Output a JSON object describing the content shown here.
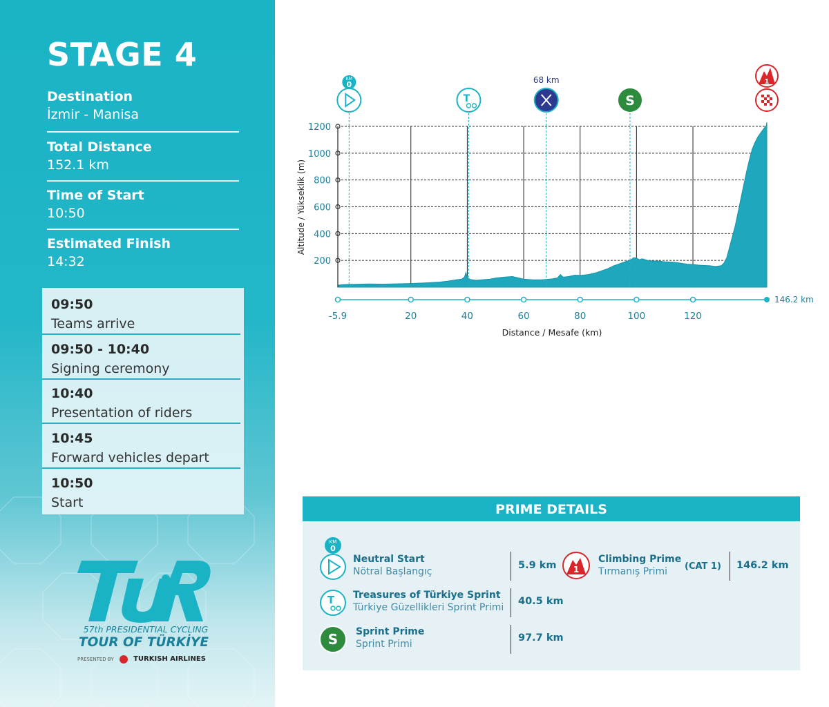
{
  "stage": {
    "title": "STAGE 4"
  },
  "info": [
    {
      "label": "Destination",
      "value": "İzmir - Manisa"
    },
    {
      "label": "Total Distance",
      "value": "152.1 km"
    },
    {
      "label": "Time of Start",
      "value": "10:50"
    },
    {
      "label": "Estimated Finish",
      "value": "14:32"
    }
  ],
  "schedule": [
    {
      "time": "09:50",
      "desc": "Teams arrive"
    },
    {
      "time": "09:50 - 10:40",
      "desc": "Signing ceremony"
    },
    {
      "time": "10:40",
      "desc": "Presentation of riders"
    },
    {
      "time": "10:45",
      "desc": "Forward vehicles depart"
    },
    {
      "time": "10:50",
      "desc": "Start"
    }
  ],
  "logo": {
    "wordmark": "TUR",
    "line1": "57th PRESIDENTIAL CYCLING",
    "line2": "TOUR OF TÜRKİYE",
    "presented": "PRESENTED BY",
    "sponsor": "TURKISH AIRLINES"
  },
  "colors": {
    "teal": "#1ab3c6",
    "dark_teal": "#1a7f9a",
    "profile": "#1fa8bd",
    "navy": "#2b3990",
    "green": "#2e8b3e",
    "red": "#d9262b"
  },
  "chart_data": {
    "type": "area",
    "ylabel": "Altitude / Yükseklik (m)",
    "xlabel": "Distance / Mesafe  (km)",
    "xlim": [
      -5.9,
      146.2
    ],
    "ylim": [
      0,
      1200
    ],
    "x_ticks": [
      "-5.9",
      "20",
      "40",
      "60",
      "80",
      "100",
      "120"
    ],
    "x_tick_values": [
      -5.9,
      20,
      40,
      60,
      80,
      100,
      120
    ],
    "y_ticks": [
      1200,
      1000,
      800,
      600,
      400,
      200
    ],
    "end_label": "146.2 km",
    "grid": true,
    "series": [
      {
        "x": [
          -5.9,
          -4,
          0,
          5,
          10,
          15,
          20,
          25,
          30,
          33,
          36,
          38,
          39,
          39.5,
          40,
          41,
          43,
          45,
          48,
          50,
          53,
          56,
          58,
          60,
          63,
          66,
          68,
          70,
          72,
          73,
          74,
          76,
          78,
          80,
          83,
          86,
          88,
          90,
          92,
          94,
          96,
          98,
          99,
          100,
          101,
          102,
          104,
          106,
          108,
          110,
          112,
          114,
          116,
          118,
          120,
          122,
          124,
          126,
          128,
          130,
          131,
          132,
          133,
          134,
          135,
          136,
          137,
          138,
          139,
          140,
          141,
          142,
          143,
          144,
          145,
          146,
          146.2
        ],
        "y": [
          15,
          20,
          22,
          24,
          23,
          25,
          28,
          32,
          38,
          45,
          55,
          60,
          75,
          110,
          70,
          58,
          52,
          55,
          60,
          68,
          75,
          80,
          70,
          60,
          56,
          55,
          58,
          62,
          70,
          95,
          75,
          80,
          90,
          88,
          95,
          110,
          125,
          140,
          160,
          175,
          190,
          205,
          220,
          218,
          205,
          212,
          200,
          195,
          195,
          190,
          188,
          185,
          178,
          172,
          170,
          165,
          162,
          160,
          155,
          160,
          180,
          220,
          300,
          380,
          460,
          560,
          660,
          760,
          860,
          950,
          1030,
          1080,
          1120,
          1150,
          1180,
          1205,
          1230
        ]
      }
    ],
    "markers": [
      {
        "label": "KM 0",
        "km": -1.9,
        "icon": "neutral-start-icon"
      },
      {
        "label": "",
        "km": 40.5,
        "icon": "treasures-sprint-icon"
      },
      {
        "label": "68 km",
        "km": 68,
        "icon": "feed-zone-icon"
      },
      {
        "label": "S",
        "km": 97.7,
        "icon": "sprint-icon"
      },
      {
        "label": "1",
        "km": 146.2,
        "icon": "climb-cat1-icon"
      }
    ]
  },
  "prime": {
    "title": "PRIME DETAILS",
    "km0_badge": "KM 0",
    "neutral": {
      "name": "Neutral Start",
      "sub": "Nötral Başlangıç",
      "km": "5.9 km"
    },
    "treasures": {
      "name": "Treasures of Türkiye Sprint",
      "sub": "Türkiye Güzellikleri Sprint Primi",
      "km": "40.5 km"
    },
    "sprint": {
      "name": "Sprint Prime",
      "sub": "Sprint Primi",
      "km": "97.7 km",
      "badge": "S"
    },
    "climb": {
      "name": "Climbing Prime",
      "sub": "Tırmanış Primi",
      "cat": "(CAT 1)",
      "km": "146.2 km",
      "badge": "1"
    }
  }
}
